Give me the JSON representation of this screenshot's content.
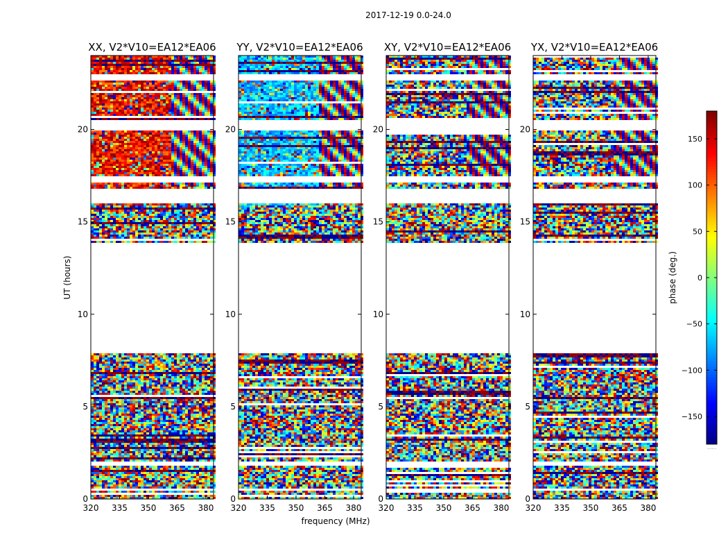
{
  "figure": {
    "suptitle": "2017-12-19 0.0-24.0"
  },
  "chart_data": {
    "type": "heatmap",
    "ylabel": "UT (hours)",
    "xlabel": "frequency (MHz)",
    "xlim": [
      320,
      384
    ],
    "ylim": [
      0,
      24
    ],
    "xticks": [
      320,
      335,
      350,
      365,
      380
    ],
    "yticks": [
      0,
      5,
      10,
      15,
      20
    ],
    "colorbar": {
      "label": "phase (deg.)",
      "range": [
        -180,
        180
      ],
      "ticks": [
        150,
        100,
        50,
        0,
        -50,
        -100,
        -150
      ],
      "colormap": "jet",
      "footer": "......"
    },
    "panels": [
      {
        "title": "XX, V2*V10=EA12*EA06",
        "pol": "XX",
        "bias": "red"
      },
      {
        "title": "YY, V2*V10=EA12*EA06",
        "pol": "YY",
        "bias": "cyan"
      },
      {
        "title": "XY, V2*V10=EA12*EA06",
        "pol": "XY",
        "bias": "noise"
      },
      {
        "title": "YX, V2*V10=EA12*EA06",
        "pol": "YX",
        "bias": "noise"
      }
    ],
    "data_gaps_ut_hours": [
      [
        8.0,
        13.9
      ],
      [
        16.1,
        16.9
      ],
      [
        17.2,
        17.5
      ],
      [
        20.0,
        20.6
      ],
      [
        22.7,
        23.0
      ],
      [
        1.9,
        2.1
      ],
      [
        0.5,
        0.6
      ]
    ]
  }
}
